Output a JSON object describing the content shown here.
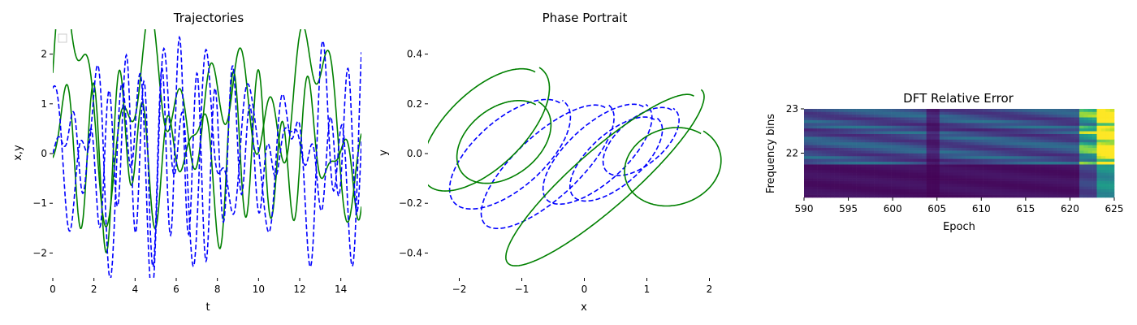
{
  "chart_data": [
    {
      "type": "line",
      "title": "Trajectories",
      "xlabel": "t",
      "ylabel": "x,y",
      "xlim": [
        0,
        15
      ],
      "ylim": [
        -2.5,
        2.5
      ],
      "xticks": [
        "0",
        "2",
        "4",
        "6",
        "8",
        "10",
        "12",
        "14"
      ],
      "yticks": [
        "−2",
        "−1",
        "0",
        "1",
        "2"
      ],
      "legend": "top-left (empty)",
      "grid": false,
      "series": [
        {
          "color": "#008000",
          "linestyle": "solid",
          "y0": 1.0,
          "tmax": 15
        },
        {
          "color": "#008000",
          "linestyle": "solid",
          "y0": 0.0,
          "tmax": 15
        },
        {
          "color": "#0000ff",
          "linestyle": "dashed",
          "y0": 1.2,
          "tmax": 15
        },
        {
          "color": "#0000ff",
          "linestyle": "dashed",
          "y0": 0.0,
          "tmax": 15
        }
      ]
    },
    {
      "type": "line",
      "title": "Phase Portrait",
      "xlabel": "x",
      "ylabel": "y",
      "xlim": [
        -2.5,
        2.5
      ],
      "ylim": [
        -0.5,
        0.5
      ],
      "xticks": [
        "−2",
        "−1",
        "0",
        "1",
        "2"
      ],
      "yticks": [
        "−0.4",
        "−0.2",
        "0.0",
        "0.2",
        "0.4"
      ],
      "grid": false,
      "series": [
        {
          "color": "#008000",
          "linestyle": "solid"
        },
        {
          "color": "#0000ff",
          "linestyle": "dashed"
        }
      ]
    },
    {
      "type": "heatmap",
      "title": "DFT Relative Error",
      "xlabel": "Epoch",
      "ylabel": "Frequency bins",
      "xlim": [
        590,
        625
      ],
      "ylim": [
        21,
        23
      ],
      "xticks": [
        "590",
        "595",
        "600",
        "605",
        "610",
        "615",
        "620",
        "625"
      ],
      "yticks": [
        "22",
        "23"
      ],
      "colormap": "viridis",
      "rows": 32,
      "cols": 71
    }
  ]
}
